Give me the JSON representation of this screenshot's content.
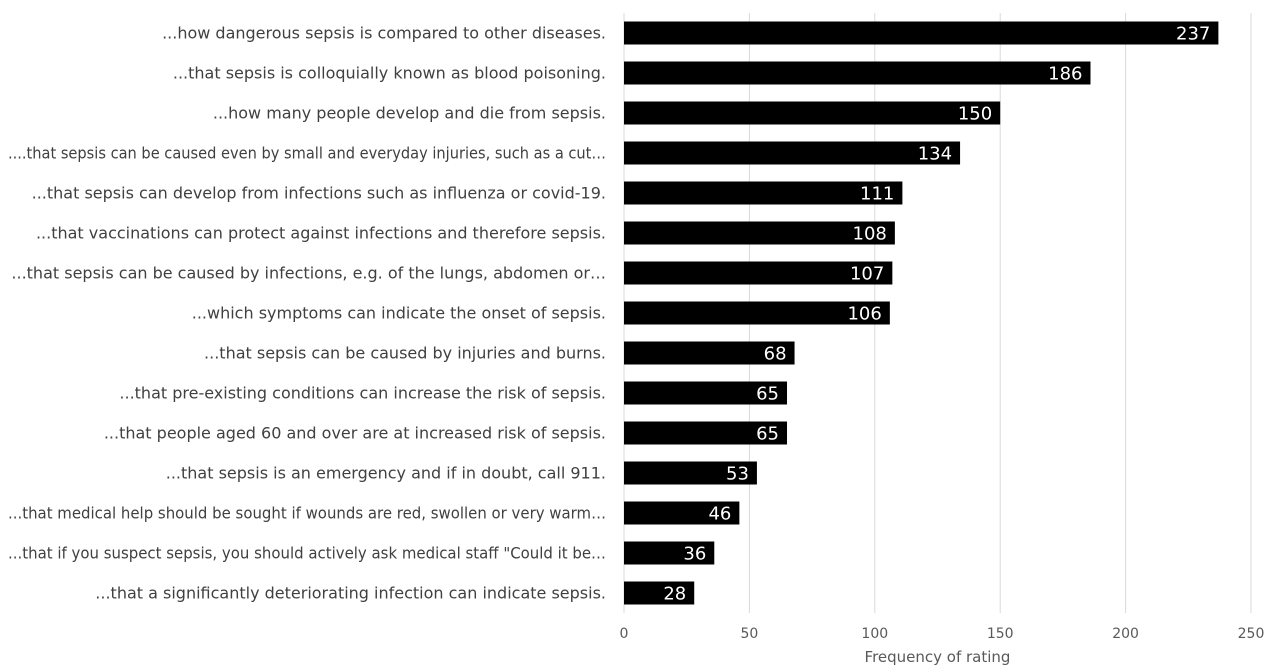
{
  "chart_data": {
    "type": "bar",
    "orientation": "horizontal",
    "categories": [
      "...how dangerous sepsis is compared to other diseases.",
      "...that sepsis is colloquially known as blood poisoning.",
      "...how many people develop and die from sepsis.",
      "....that sepsis can be caused even by small and everyday injuries, such as a cut…",
      "...that sepsis can develop from infections such as influenza or covid-19.",
      "...that vaccinations can protect against infections and therefore sepsis.",
      "...that sepsis can be caused by infections, e.g. of the lungs, abdomen or…",
      "...which symptoms can indicate the onset of sepsis.",
      "...that sepsis can be caused by injuries and burns.",
      "...that pre-existing conditions can increase the risk of sepsis.",
      "...that people aged 60 and over are at increased risk of sepsis.",
      "...that sepsis is an emergency and if in doubt, call 911.",
      "...that medical help should be sought if wounds are red, swollen or very warm…",
      "...that if you suspect sepsis, you should actively ask medical staff \"Could it be…",
      "...that a significantly deteriorating infection can indicate sepsis."
    ],
    "values": [
      237,
      186,
      150,
      134,
      111,
      108,
      107,
      106,
      68,
      65,
      65,
      53,
      46,
      36,
      28
    ],
    "xlabel": "Frequency of rating",
    "xlim": [
      0,
      250
    ],
    "xticks": [
      0,
      50,
      100,
      150,
      200,
      250
    ],
    "grid": "vertical",
    "bar_color": "#000000",
    "value_label_color": "#ffffff"
  }
}
